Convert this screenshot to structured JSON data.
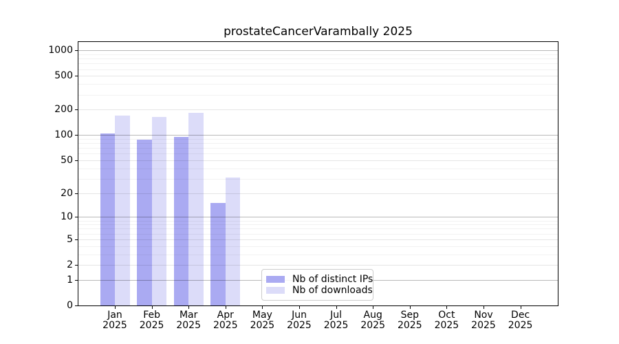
{
  "chart_data": {
    "type": "bar",
    "title": "prostateCancerVarambally 2025",
    "scale": "log10(1+x)",
    "ylim": [
      0,
      1258
    ],
    "grid": true,
    "legend_position": "lower-center",
    "categories": [
      {
        "month": "Jan",
        "year": "2025"
      },
      {
        "month": "Feb",
        "year": "2025"
      },
      {
        "month": "Mar",
        "year": "2025"
      },
      {
        "month": "Apr",
        "year": "2025"
      },
      {
        "month": "May",
        "year": "2025"
      },
      {
        "month": "Jun",
        "year": "2025"
      },
      {
        "month": "Jul",
        "year": "2025"
      },
      {
        "month": "Aug",
        "year": "2025"
      },
      {
        "month": "Sep",
        "year": "2025"
      },
      {
        "month": "Oct",
        "year": "2025"
      },
      {
        "month": "Nov",
        "year": "2025"
      },
      {
        "month": "Dec",
        "year": "2025"
      }
    ],
    "series": [
      {
        "name": "Nb of distinct IPs",
        "color": "#aaaaf2",
        "values": [
          105,
          89,
          95,
          15,
          0,
          0,
          0,
          0,
          0,
          0,
          0,
          0
        ]
      },
      {
        "name": "Nb of downloads",
        "color": "#dcdcf9",
        "values": [
          170,
          164,
          184,
          31,
          0,
          0,
          0,
          0,
          0,
          0,
          0,
          0
        ]
      }
    ],
    "y_ticks": [
      0,
      1,
      2,
      5,
      10,
      20,
      50,
      100,
      200,
      500,
      1000
    ],
    "y_minor_ticks": [
      3,
      4,
      6,
      7,
      8,
      9,
      30,
      40,
      60,
      70,
      80,
      90,
      300,
      400,
      600,
      700,
      800,
      900
    ]
  }
}
